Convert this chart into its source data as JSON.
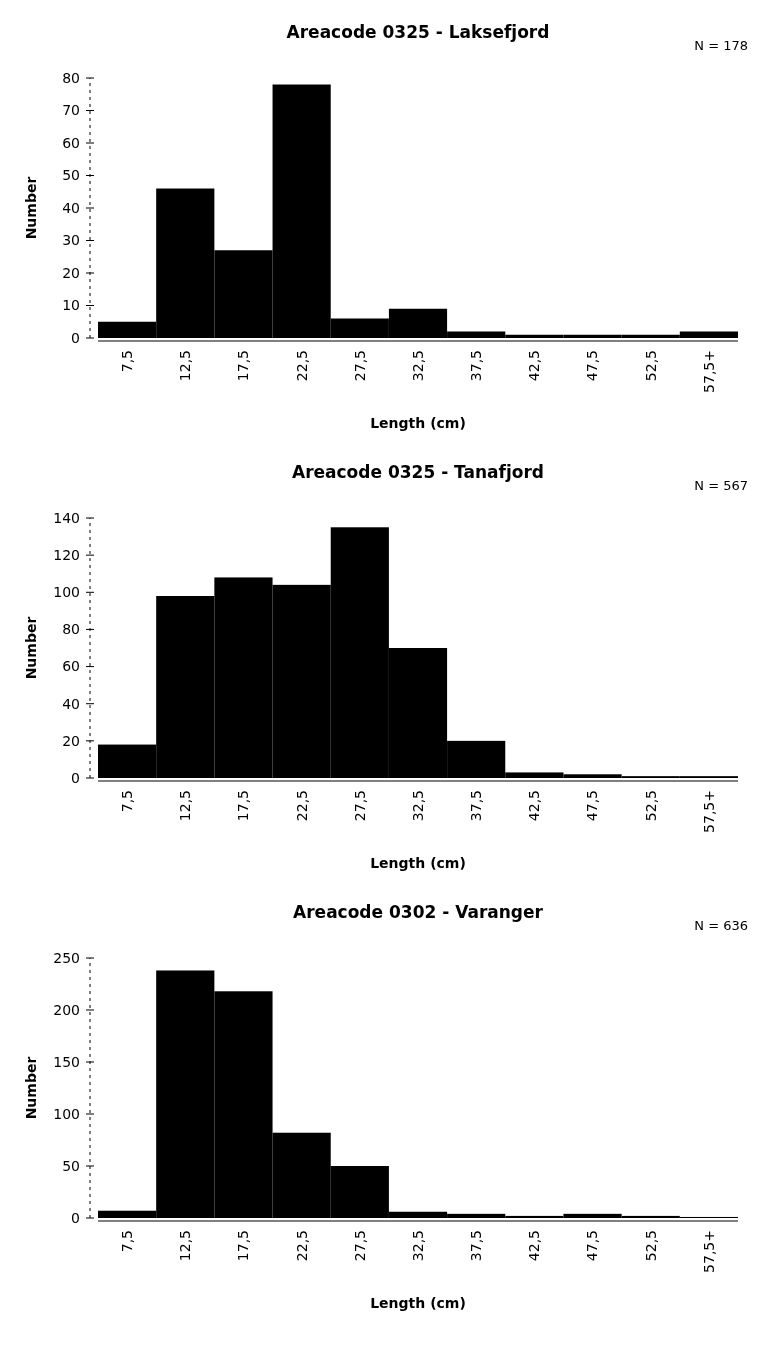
{
  "chart_data": [
    {
      "type": "bar",
      "title": "Areacode 0325 - Laksefjord",
      "xlabel": "Length (cm)",
      "ylabel": "Number",
      "annotations": [
        "N = 178"
      ],
      "categories": [
        "7,5",
        "12,5",
        "17,5",
        "22,5",
        "27,5",
        "32,5",
        "37,5",
        "42,5",
        "47,5",
        "52,5",
        "57,5+"
      ],
      "values": [
        5,
        46,
        27,
        78,
        6,
        9,
        2,
        1,
        1,
        1,
        2
      ],
      "color": "#000000",
      "ylim": [
        0,
        80
      ],
      "yticks": [
        0,
        10,
        20,
        30,
        40,
        50,
        60,
        70,
        80
      ]
    },
    {
      "type": "bar",
      "title": "Areacode 0325 - Tanafjord",
      "xlabel": "Length (cm)",
      "ylabel": "Number",
      "annotations": [
        "N = 567"
      ],
      "categories": [
        "7,5",
        "12,5",
        "17,5",
        "22,5",
        "27,5",
        "32,5",
        "37,5",
        "42,5",
        "47,5",
        "52,5",
        "57,5+"
      ],
      "values": [
        18,
        98,
        108,
        104,
        135,
        70,
        20,
        3,
        2,
        1,
        1
      ],
      "color": "#000000",
      "ylim": [
        0,
        140
      ],
      "yticks": [
        0,
        20,
        40,
        60,
        80,
        100,
        120,
        140
      ]
    },
    {
      "type": "bar",
      "title": "Areacode 0302 - Varanger",
      "xlabel": "Length (cm)",
      "ylabel": "Number",
      "annotations": [
        "N = 636"
      ],
      "categories": [
        "7,5",
        "12,5",
        "17,5",
        "22,5",
        "27,5",
        "32,5",
        "37,5",
        "42,5",
        "47,5",
        "52,5",
        "57,5+"
      ],
      "values": [
        7,
        238,
        218,
        82,
        50,
        6,
        4,
        2,
        4,
        2,
        1
      ],
      "color": "#000000",
      "ylim": [
        0,
        250
      ],
      "yticks": [
        0,
        50,
        100,
        150,
        200,
        250
      ]
    }
  ]
}
